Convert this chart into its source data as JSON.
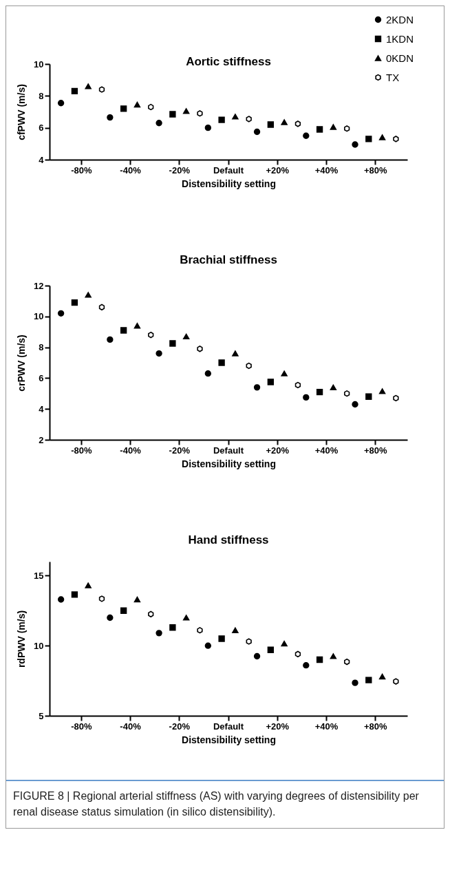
{
  "chart_data": [
    {
      "type": "scatter",
      "title": "Aortic stiffness",
      "xlabel": "Distensibility setting",
      "ylabel": "cfPWV (m/s)",
      "categories": [
        "-80%",
        "-40%",
        "-20%",
        "Default",
        "+20%",
        "+40%",
        "+80%"
      ],
      "ylim": [
        4,
        10
      ],
      "yticks": [
        4,
        6,
        8,
        10
      ],
      "grid": false,
      "legend": "top right",
      "series": [
        {
          "name": "2KDN",
          "color": "#000000",
          "marker": "circle",
          "values": [
            7.55,
            6.65,
            6.3,
            6.0,
            5.75,
            5.5,
            4.95
          ]
        },
        {
          "name": "1KDN",
          "color": "#000000",
          "marker": "square",
          "values": [
            8.3,
            7.2,
            6.85,
            6.5,
            6.2,
            5.9,
            5.3
          ]
        },
        {
          "name": "0KDN",
          "color": "#000000",
          "marker": "triangle",
          "values": [
            8.6,
            7.45,
            7.05,
            6.7,
            6.35,
            6.05,
            5.4
          ]
        },
        {
          "name": "TX",
          "color": "#000000",
          "values": [
            8.4,
            7.3,
            6.9,
            6.55,
            6.25,
            5.95,
            5.3
          ]
        }
      ]
    },
    {
      "type": "scatter",
      "title": "Brachial stiffness",
      "xlabel": "Distensibility setting",
      "ylabel": "crPWV (m/s)",
      "categories": [
        "-80%",
        "-40%",
        "-20%",
        "Default",
        "+20%",
        "+40%",
        "+80%"
      ],
      "ylim": [
        2,
        12
      ],
      "yticks": [
        2,
        4,
        6,
        8,
        10,
        12
      ],
      "grid": false,
      "series": [
        {
          "color": "#000000",
          "marker": "circle",
          "values": [
            10.2,
            8.5,
            7.6,
            6.3,
            5.4,
            4.75,
            4.3
          ]
        },
        {
          "color": "#000000",
          "marker": "square",
          "values": [
            10.9,
            9.1,
            8.25,
            7.0,
            5.75,
            5.1,
            4.8
          ]
        },
        {
          "color": "#000000",
          "marker": "triangle",
          "values": [
            11.4,
            9.4,
            8.7,
            7.6,
            6.3,
            5.4,
            5.15
          ]
        },
        {
          "color": "#000000",
          "values": [
            10.6,
            8.8,
            7.9,
            6.8,
            5.55,
            5.0,
            4.7
          ]
        }
      ]
    },
    {
      "type": "scatter",
      "title": "Hand stiffness",
      "xlabel": "Distensibility setting",
      "ylabel": "rdPWV (m/s)",
      "categories": [
        "-80%",
        "-40%",
        "-20%",
        "Default",
        "+20%",
        "+40%",
        "+80%"
      ],
      "ylim": [
        5,
        16
      ],
      "yticks": [
        5,
        10,
        15
      ],
      "grid": false,
      "annotations": [
        "FIGURE 8 | Regional arterial stiffness (AS) with varying degrees of distensibility per renal disease status simulation (in silico distensibility)."
      ],
      "series": [
        {
          "color": "#000000",
          "marker": "circle",
          "values": [
            13.3,
            12.0,
            10.9,
            10.0,
            9.25,
            8.6,
            7.35
          ]
        },
        {
          "color": "#000000",
          "marker": "square",
          "values": [
            13.65,
            12.5,
            11.3,
            10.5,
            9.7,
            9.0,
            7.55
          ]
        },
        {
          "color": "#000000",
          "marker": "triangle",
          "values": [
            14.3,
            13.3,
            12.0,
            11.1,
            10.15,
            9.25,
            7.8
          ]
        },
        {
          "color": "#000000",
          "values": [
            13.35,
            12.25,
            11.1,
            10.3,
            9.4,
            8.85,
            7.45
          ]
        }
      ]
    }
  ]
}
